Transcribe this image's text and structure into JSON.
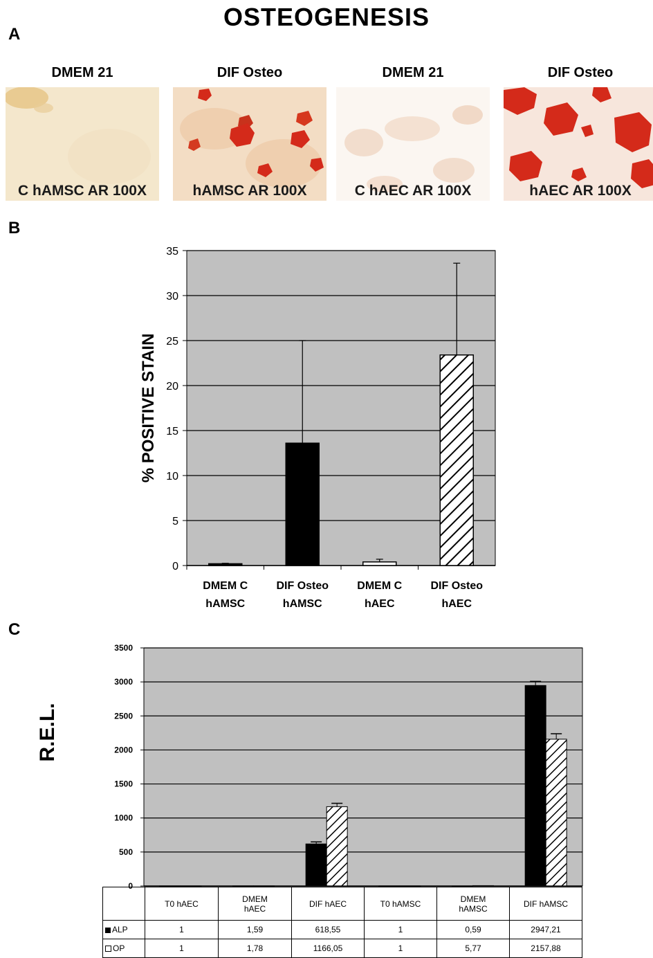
{
  "figure": {
    "title": "OSTEOGENESIS",
    "panel_labels": [
      "A",
      "B",
      "C"
    ]
  },
  "panel_a": {
    "images": [
      {
        "header": "DMEM 21",
        "caption": "C hAMSC AR 100X",
        "stain": "none"
      },
      {
        "header": "DIF Osteo",
        "caption": "hAMSC AR 100X",
        "stain": "moderate"
      },
      {
        "header": "DMEM 21",
        "caption": "C hAEC AR 100X",
        "stain": "faint"
      },
      {
        "header": "DIF Osteo",
        "caption": "hAEC AR 100X",
        "stain": "strong"
      }
    ],
    "colors": {
      "alizarin_red": "#d42a1a",
      "background_beige": "#f3e6cf"
    }
  },
  "chart_data": [
    {
      "panel": "B",
      "type": "bar",
      "ylabel": "% POSITIVE STAIN",
      "ylim": [
        0,
        35
      ],
      "yticks": [
        0,
        5,
        10,
        15,
        20,
        25,
        30,
        35
      ],
      "categories": [
        {
          "line1": "DMEM C",
          "line2": "hAMSC"
        },
        {
          "line1": "DIF Osteo",
          "line2": "hAMSC"
        },
        {
          "line1": "DMEM C",
          "line2": "hAEC"
        },
        {
          "line1": "DIF Osteo",
          "line2": "hAEC"
        }
      ],
      "values": [
        0.2,
        13.6,
        0.4,
        23.4
      ],
      "errors": [
        0.05,
        11.4,
        0.3,
        10.2
      ],
      "fills": [
        "black",
        "black",
        "white",
        "hatch"
      ],
      "grid": true,
      "plot_background": "#c0c0c0"
    },
    {
      "panel": "C",
      "type": "bar",
      "ylabel": "R.E.L.",
      "ylim": [
        0,
        3500
      ],
      "yticks": [
        0,
        500,
        1000,
        1500,
        2000,
        2500,
        3000,
        3500
      ],
      "categories": [
        {
          "line1": "T0 hAEC",
          "line2": ""
        },
        {
          "line1": "DMEM",
          "line2": "hAEC"
        },
        {
          "line1": "DIF hAEC",
          "line2": ""
        },
        {
          "line1": "T0 hAMSC",
          "line2": ""
        },
        {
          "line1": "DMEM",
          "line2": "hAMSC"
        },
        {
          "line1": "DIF hAMSC",
          "line2": ""
        }
      ],
      "series": [
        {
          "name": "ALP",
          "fill": "black",
          "values": [
            1,
            1.59,
            618.55,
            1,
            0.59,
            2947.21
          ],
          "display": [
            "1",
            "1,59",
            "618,55",
            "1",
            "0,59",
            "2947,21"
          ],
          "errors": [
            0,
            0,
            30,
            0,
            0,
            60
          ]
        },
        {
          "name": "OP",
          "fill": "hatch",
          "values": [
            1,
            1.78,
            1166.05,
            1,
            5.77,
            2157.88
          ],
          "display": [
            "1",
            "1,78",
            "1166,05",
            "1",
            "5,77",
            "2157,88"
          ],
          "errors": [
            0,
            0,
            50,
            0,
            0,
            80
          ]
        }
      ],
      "grid": true,
      "legend": "table-left",
      "plot_background": "#c0c0c0"
    }
  ]
}
